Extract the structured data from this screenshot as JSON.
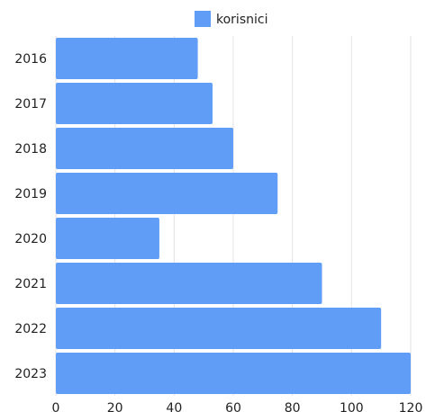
{
  "chart_data": {
    "type": "bar",
    "orientation": "horizontal",
    "categories": [
      "2016",
      "2017",
      "2018",
      "2019",
      "2020",
      "2021",
      "2022",
      "2023"
    ],
    "series": [
      {
        "name": "korisnici",
        "values": [
          48,
          53,
          60,
          75,
          35,
          90,
          110,
          120
        ]
      }
    ],
    "x_ticks": [
      0,
      20,
      40,
      60,
      80,
      100,
      120
    ],
    "xlim": [
      0,
      120
    ],
    "grid": "vertical",
    "legend": "top-center",
    "bar_color": "#5F9DF7",
    "title": "",
    "xlabel": "",
    "ylabel": ""
  }
}
